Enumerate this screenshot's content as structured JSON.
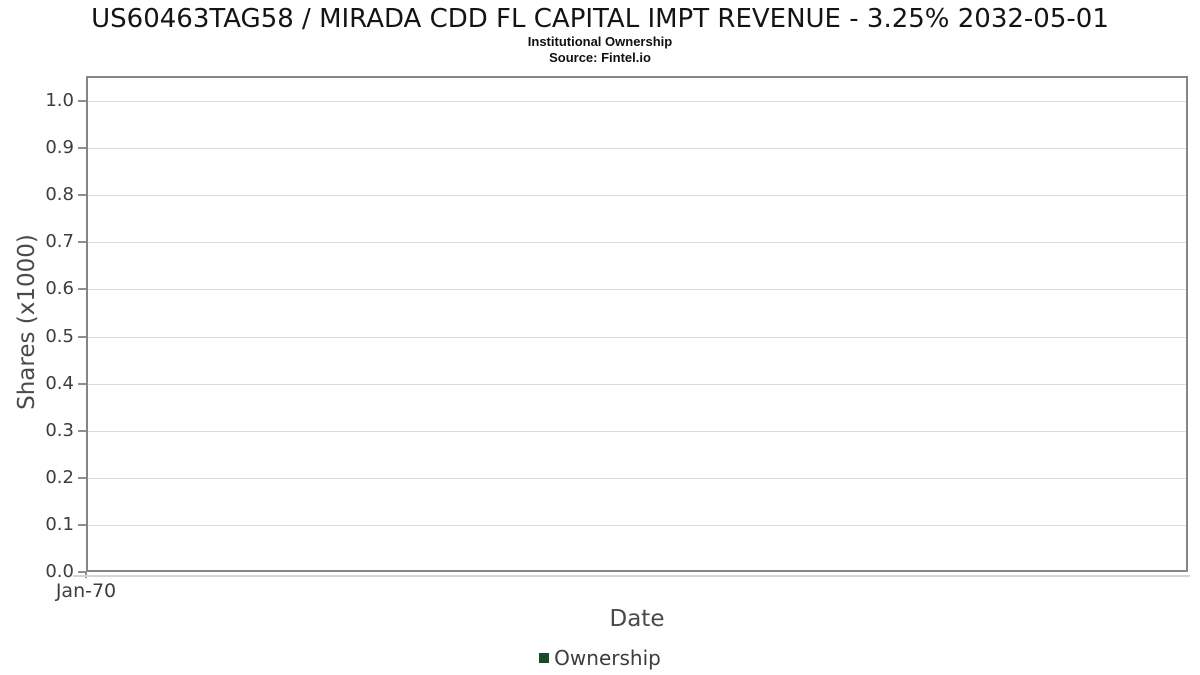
{
  "chart_data": {
    "type": "line",
    "title": "US60463TAG58 / MIRADA CDD FL CAPITAL IMPT REVENUE - 3.25% 2032-05-01",
    "subtitle": "Institutional Ownership",
    "source": "Source: Fintel.io",
    "xlabel": "Date",
    "ylabel": "Shares (x1000)",
    "x_tick_labels": [
      "Jan-70"
    ],
    "y_tick_labels": [
      "0.0",
      "0.1",
      "0.2",
      "0.3",
      "0.4",
      "0.5",
      "0.6",
      "0.7",
      "0.8",
      "0.9",
      "1.0"
    ],
    "y_tick_values": [
      0,
      0.1,
      0.2,
      0.3,
      0.4,
      0.5,
      0.6,
      0.7,
      0.8,
      0.9,
      1.0
    ],
    "ylim": [
      0,
      1.05
    ],
    "grid": "horizontal-only",
    "legend": {
      "position": "bottom-center",
      "entries": [
        {
          "label": "Ownership",
          "color": "#1d4a27"
        }
      ]
    },
    "series": [
      {
        "name": "Ownership",
        "x": [],
        "y": []
      }
    ]
  },
  "colors": {
    "frame": "#868686",
    "gridline": "#dcdcdc",
    "tick": "#8f8f8f",
    "axis_subline": "#d4d4d4",
    "title_text": "#141414",
    "tick_label_text": "#3d3d3d",
    "axis_label_text": "#4a4a4a",
    "legend_text": "#3d3d3d"
  }
}
